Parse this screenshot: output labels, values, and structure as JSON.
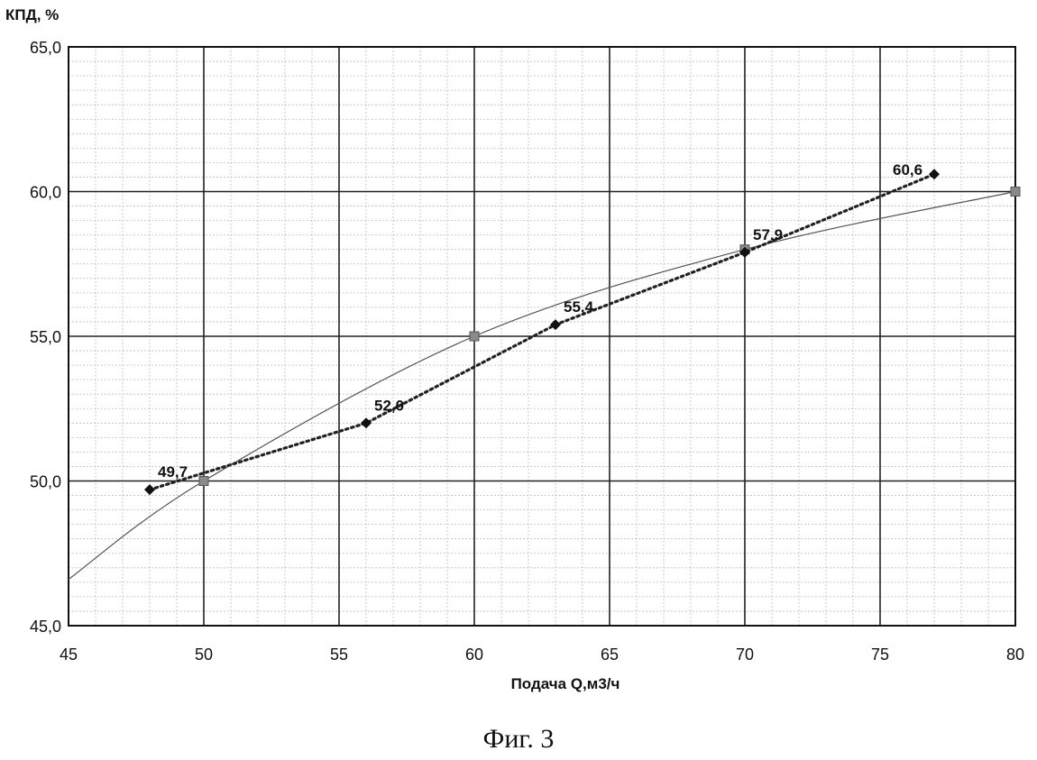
{
  "chart_data": {
    "type": "line",
    "ylabel": "КПД, %",
    "xlabel": "Подача Q,м3/ч",
    "xlim": [
      45,
      80
    ],
    "ylim": [
      45,
      65
    ],
    "x_ticks": [
      "45",
      "50",
      "55",
      "60",
      "65",
      "70",
      "75",
      "80"
    ],
    "y_ticks": [
      "45,0",
      "50,0",
      "55,0",
      "60,0",
      "65,0"
    ],
    "grid": true,
    "series": [
      {
        "style": "dotted",
        "marker": "diamond",
        "color": "#222222",
        "points": [
          {
            "x": 48,
            "y": 49.7,
            "label": "49,7"
          },
          {
            "x": 56,
            "y": 52.0,
            "label": "52,0"
          },
          {
            "x": 63,
            "y": 55.4,
            "label": "55,4"
          },
          {
            "x": 70,
            "y": 57.9,
            "label": "57,9"
          },
          {
            "x": 77,
            "y": 60.6,
            "label": "60,6"
          }
        ]
      },
      {
        "style": "solid-thin",
        "marker": "square",
        "color": "#555555",
        "points": [
          {
            "x": 50,
            "y": 50.0
          },
          {
            "x": 60,
            "y": 55.0
          },
          {
            "x": 70,
            "y": 58.0
          },
          {
            "x": 80,
            "y": 60.0
          }
        ],
        "curve_start": {
          "x": 45,
          "y": 46.6
        }
      }
    ]
  },
  "caption": "Фиг. 3"
}
